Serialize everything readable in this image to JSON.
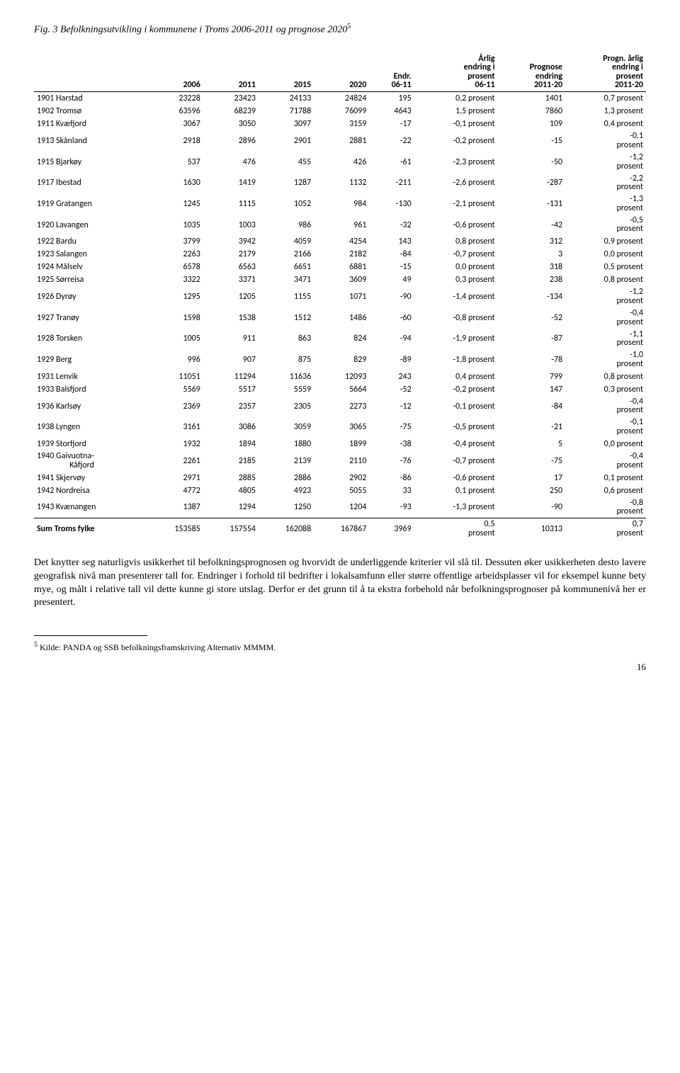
{
  "figTitle": "Fig. 3 Befolkningsutvikling i kommunene i Troms 2006-2011 og prognose 2020",
  "figSup": "5",
  "headers": {
    "c0": "",
    "c1": "2006",
    "c2": "2011",
    "c3": "2015",
    "c4": "2020",
    "c5": "Endr.\n06-11",
    "c6": "Årlig\nendring i\nprosent\n06-11",
    "c7": "Prognose\nendring\n2011-20",
    "c8": "Progn. årlig\nendring i\nprosent\n2011-20"
  },
  "rows": [
    {
      "name": "1901 Harstad",
      "v": [
        "23228",
        "23423",
        "24133",
        "24824",
        "195",
        "0,2 prosent",
        "1401",
        "0,7 prosent"
      ]
    },
    {
      "name": "1902 Tromsø",
      "v": [
        "63596",
        "68239",
        "71788",
        "76099",
        "4643",
        "1,5 prosent",
        "7860",
        "1,3 prosent"
      ]
    },
    {
      "name": "1911 Kvæfjord",
      "v": [
        "3067",
        "3050",
        "3097",
        "3159",
        "-17",
        "-0,1 prosent",
        "109",
        "0,4 prosent"
      ]
    },
    {
      "name": "1913 Skånland",
      "v": [
        "2918",
        "2896",
        "2901",
        "2881",
        "-22",
        "-0,2 prosent",
        "-15",
        "-0,1\nprosent"
      ]
    },
    {
      "name": "1915 Bjarkøy",
      "v": [
        "537",
        "476",
        "455",
        "426",
        "-61",
        "-2,3 prosent",
        "-50",
        "-1,2\nprosent"
      ]
    },
    {
      "name": "1917 Ibestad",
      "v": [
        "1630",
        "1419",
        "1287",
        "1132",
        "-211",
        "-2,6 prosent",
        "-287",
        "-2,2\nprosent"
      ]
    },
    {
      "name": "1919 Gratangen",
      "v": [
        "1245",
        "1115",
        "1052",
        "984",
        "-130",
        "-2,1 prosent",
        "-131",
        "-1,3\nprosent"
      ]
    },
    {
      "name": "1920 Lavangen",
      "v": [
        "1035",
        "1003",
        "986",
        "961",
        "-32",
        "-0,6 prosent",
        "-42",
        "-0,5\nprosent"
      ]
    },
    {
      "name": "1922 Bardu",
      "v": [
        "3799",
        "3942",
        "4059",
        "4254",
        "143",
        "0,8 prosent",
        "312",
        "0,9 prosent"
      ]
    },
    {
      "name": "1923 Salangen",
      "v": [
        "2263",
        "2179",
        "2166",
        "2182",
        "-84",
        "-0,7 prosent",
        "3",
        "0,0 prosent"
      ]
    },
    {
      "name": "1924 Målselv",
      "v": [
        "6578",
        "6563",
        "6651",
        "6881",
        "-15",
        "0,0 prosent",
        "318",
        "0,5 prosent"
      ]
    },
    {
      "name": "1925 Sørreisa",
      "v": [
        "3322",
        "3371",
        "3471",
        "3609",
        "49",
        "0,3 prosent",
        "238",
        "0,8 prosent"
      ]
    },
    {
      "name": "1926 Dyrøy",
      "v": [
        "1295",
        "1205",
        "1155",
        "1071",
        "-90",
        "-1,4 prosent",
        "-134",
        "-1,2\nprosent"
      ]
    },
    {
      "name": "1927 Tranøy",
      "v": [
        "1598",
        "1538",
        "1512",
        "1486",
        "-60",
        "-0,8 prosent",
        "-52",
        "-0,4\nprosent"
      ]
    },
    {
      "name": "1928 Torsken",
      "v": [
        "1005",
        "911",
        "863",
        "824",
        "-94",
        "-1,9 prosent",
        "-87",
        "-1,1\nprosent"
      ]
    },
    {
      "name": "1929 Berg",
      "v": [
        "996",
        "907",
        "875",
        "829",
        "-89",
        "-1,8 prosent",
        "-78",
        "-1,0\nprosent"
      ]
    },
    {
      "name": "1931 Lenvik",
      "v": [
        "11051",
        "11294",
        "11636",
        "12093",
        "243",
        "0,4 prosent",
        "799",
        "0,8 prosent"
      ]
    },
    {
      "name": "1933 Balsfjord",
      "v": [
        "5569",
        "5517",
        "5559",
        "5664",
        "-52",
        "-0,2 prosent",
        "147",
        "0,3 prosent"
      ]
    },
    {
      "name": "1936 Karlsøy",
      "v": [
        "2369",
        "2357",
        "2305",
        "2273",
        "-12",
        "-0,1 prosent",
        "-84",
        "-0,4\nprosent"
      ]
    },
    {
      "name": "1938 Lyngen",
      "v": [
        "3161",
        "3086",
        "3059",
        "3065",
        "-75",
        "-0,5 prosent",
        "-21",
        "-0,1\nprosent"
      ]
    },
    {
      "name": "1939 Storfjord",
      "v": [
        "1932",
        "1894",
        "1880",
        "1899",
        "-38",
        "-0,4 prosent",
        "5",
        "0,0 prosent"
      ]
    },
    {
      "name": "1940 Gaivuotna-\nKåfjord",
      "v": [
        "2261",
        "2185",
        "2139",
        "2110",
        "-76",
        "-0,7 prosent",
        "-75",
        "-0,4\nprosent"
      ]
    },
    {
      "name": "1941 Skjervøy",
      "v": [
        "2971",
        "2885",
        "2886",
        "2902",
        "-86",
        "-0,6 prosent",
        "17",
        "0,1 prosent"
      ]
    },
    {
      "name": "1942 Nordreisa",
      "v": [
        "4772",
        "4805",
        "4923",
        "5055",
        "33",
        "0,1 prosent",
        "250",
        "0,6 prosent"
      ]
    },
    {
      "name": "1943 Kvænangen",
      "v": [
        "1387",
        "1294",
        "1250",
        "1204",
        "-93",
        "-1,3 prosent",
        "-90",
        "-0,8\nprosent"
      ]
    }
  ],
  "sumRow": {
    "name": "Sum Troms fylke",
    "v": [
      "153585",
      "157554",
      "162088",
      "167867",
      "3969",
      "0,5\nprosent",
      "10313",
      "0,7\nprosent"
    ]
  },
  "bodyText": "Det knytter seg naturligvis usikkerhet til befolkningsprognosen og hvorvidt de underliggende kriterier vil slå til. Dessuten øker usikkerheten desto lavere geografisk nivå man presenterer tall for. Endringer i forhold til bedrifter i lokalsamfunn eller større offentlige arbeidsplasser vil for eksempel kunne bety mye, og målt i relative tall vil dette kunne gi store utslag. Derfor er det grunn til å ta ekstra forbehold når befolkningsprognoser på kommunenivå her er presentert.",
  "footnoteNum": "5",
  "footnoteText": " Kilde: PANDA og SSB befolkningsframskriving Alternativ MMMM.",
  "pageNum": "16"
}
